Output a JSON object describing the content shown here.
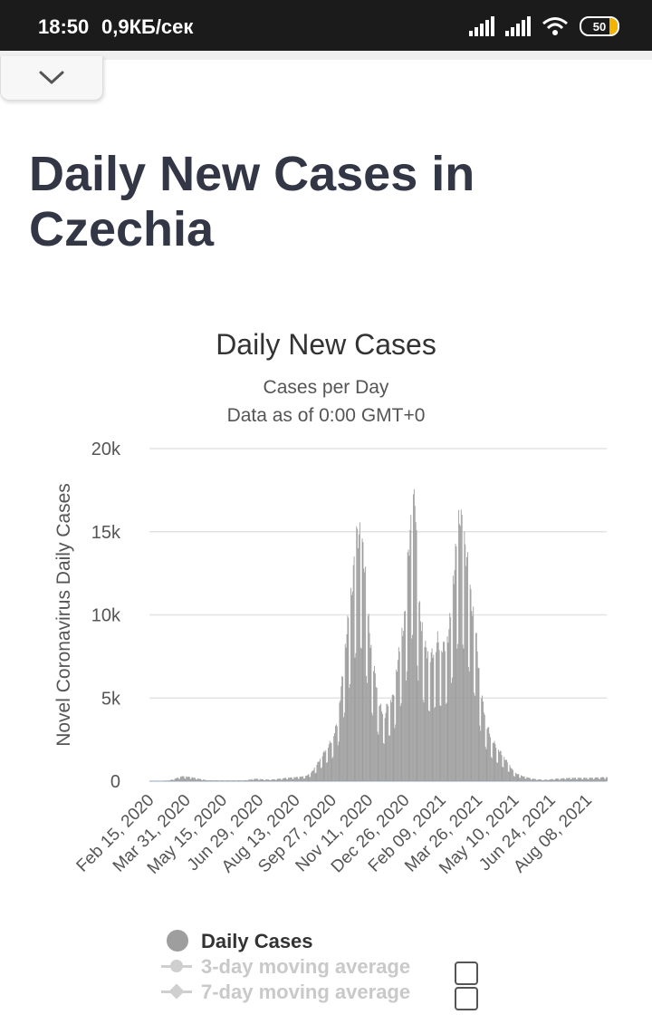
{
  "status_bar": {
    "time": "18:50",
    "speed": "0,9КБ/сек",
    "battery": "50",
    "icons": [
      "signal-icon",
      "signal-icon",
      "wifi-icon",
      "battery-icon"
    ]
  },
  "collapse_icon": "chevron-down-icon",
  "page": {
    "title": "Daily New Cases in Czechia"
  },
  "chart_data": {
    "type": "bar",
    "title": "Daily New Cases",
    "subtitle_lines": [
      "Cases per Day",
      "Data as of 0:00 GMT+0"
    ],
    "ylabel": "Novel Coronavirus Daily Cases",
    "ylim": [
      0,
      20000
    ],
    "yticks": [
      {
        "value": 0,
        "label": "0"
      },
      {
        "value": 5000,
        "label": "5k"
      },
      {
        "value": 10000,
        "label": "10k"
      },
      {
        "value": 15000,
        "label": "15k"
      },
      {
        "value": 20000,
        "label": "20k"
      }
    ],
    "x_range": [
      "2020-02-15",
      "2021-09-01"
    ],
    "xticks": [
      {
        "date": "2020-02-15",
        "label": "Feb 15, 2020"
      },
      {
        "date": "2020-03-31",
        "label": "Mar 31, 2020"
      },
      {
        "date": "2020-05-15",
        "label": "May 15, 2020"
      },
      {
        "date": "2020-06-29",
        "label": "Jun 29, 2020"
      },
      {
        "date": "2020-08-13",
        "label": "Aug 13, 2020"
      },
      {
        "date": "2020-09-27",
        "label": "Sep 27, 2020"
      },
      {
        "date": "2020-11-11",
        "label": "Nov 11, 2020"
      },
      {
        "date": "2020-12-26",
        "label": "Dec 26, 2020"
      },
      {
        "date": "2021-02-09",
        "label": "Feb 09, 2021"
      },
      {
        "date": "2021-03-26",
        "label": "Mar 26, 2021"
      },
      {
        "date": "2021-05-10",
        "label": "May 10, 2021"
      },
      {
        "date": "2021-06-24",
        "label": "Jun 24, 2021"
      },
      {
        "date": "2021-08-08",
        "label": "Aug 08, 2021"
      }
    ],
    "series": [
      {
        "name": "Daily Cases",
        "color": "#9e9e9e",
        "points": [
          [
            "2020-03-01",
            0
          ],
          [
            "2020-03-10",
            40
          ],
          [
            "2020-03-20",
            200
          ],
          [
            "2020-03-25",
            300
          ],
          [
            "2020-04-05",
            250
          ],
          [
            "2020-04-15",
            150
          ],
          [
            "2020-04-25",
            60
          ],
          [
            "2020-05-10",
            40
          ],
          [
            "2020-05-25",
            40
          ],
          [
            "2020-06-10",
            40
          ],
          [
            "2020-06-25",
            150
          ],
          [
            "2020-07-05",
            100
          ],
          [
            "2020-07-15",
            100
          ],
          [
            "2020-08-01",
            200
          ],
          [
            "2020-08-15",
            250
          ],
          [
            "2020-08-25",
            300
          ],
          [
            "2020-09-01",
            500
          ],
          [
            "2020-09-08",
            1000
          ],
          [
            "2020-09-14",
            1500
          ],
          [
            "2020-09-20",
            2000
          ],
          [
            "2020-09-27",
            2500
          ],
          [
            "2020-10-03",
            3500
          ],
          [
            "2020-10-09",
            6000
          ],
          [
            "2020-10-15",
            9000
          ],
          [
            "2020-10-20",
            11000
          ],
          [
            "2020-10-24",
            13000
          ],
          [
            "2020-10-28",
            15000
          ],
          [
            "2020-11-02",
            14500
          ],
          [
            "2020-11-06",
            13000
          ],
          [
            "2020-11-10",
            10000
          ],
          [
            "2020-11-15",
            7500
          ],
          [
            "2020-11-20",
            6000
          ],
          [
            "2020-11-25",
            4500
          ],
          [
            "2020-12-01",
            4000
          ],
          [
            "2020-12-06",
            5000
          ],
          [
            "2020-12-11",
            5000
          ],
          [
            "2020-12-16",
            7000
          ],
          [
            "2020-12-21",
            8500
          ],
          [
            "2020-12-26",
            10000
          ],
          [
            "2020-12-30",
            14000
          ],
          [
            "2021-01-04",
            16000
          ],
          [
            "2021-01-07",
            17500
          ],
          [
            "2021-01-11",
            11000
          ],
          [
            "2021-01-15",
            9500
          ],
          [
            "2021-01-20",
            8000
          ],
          [
            "2021-01-27",
            7500
          ],
          [
            "2021-02-04",
            8500
          ],
          [
            "2021-02-11",
            8000
          ],
          [
            "2021-02-18",
            9000
          ],
          [
            "2021-02-24",
            12500
          ],
          [
            "2021-03-01",
            15000
          ],
          [
            "2021-03-04",
            16200
          ],
          [
            "2021-03-08",
            14500
          ],
          [
            "2021-03-12",
            13500
          ],
          [
            "2021-03-17",
            11000
          ],
          [
            "2021-03-23",
            9000
          ],
          [
            "2021-03-29",
            5500
          ],
          [
            "2021-04-05",
            3500
          ],
          [
            "2021-04-12",
            2500
          ],
          [
            "2021-04-19",
            2000
          ],
          [
            "2021-04-26",
            1500
          ],
          [
            "2021-05-03",
            1000
          ],
          [
            "2021-05-10",
            500
          ],
          [
            "2021-05-20",
            300
          ],
          [
            "2021-06-01",
            150
          ],
          [
            "2021-06-15",
            80
          ],
          [
            "2021-07-01",
            150
          ],
          [
            "2021-07-20",
            200
          ],
          [
            "2021-08-10",
            200
          ],
          [
            "2021-09-01",
            250
          ]
        ]
      },
      {
        "name": "3-day moving average",
        "visible": false
      },
      {
        "name": "7-day moving average",
        "visible": false
      }
    ],
    "grid": true,
    "legend": "bottom"
  },
  "legend": {
    "items": [
      {
        "label": "Daily Cases",
        "active": true,
        "checkbox": false
      },
      {
        "label": "3-day moving average",
        "active": false,
        "checkbox": true,
        "checked": false
      },
      {
        "label": "7-day moving average",
        "active": false,
        "checkbox": true,
        "checked": false
      }
    ]
  }
}
